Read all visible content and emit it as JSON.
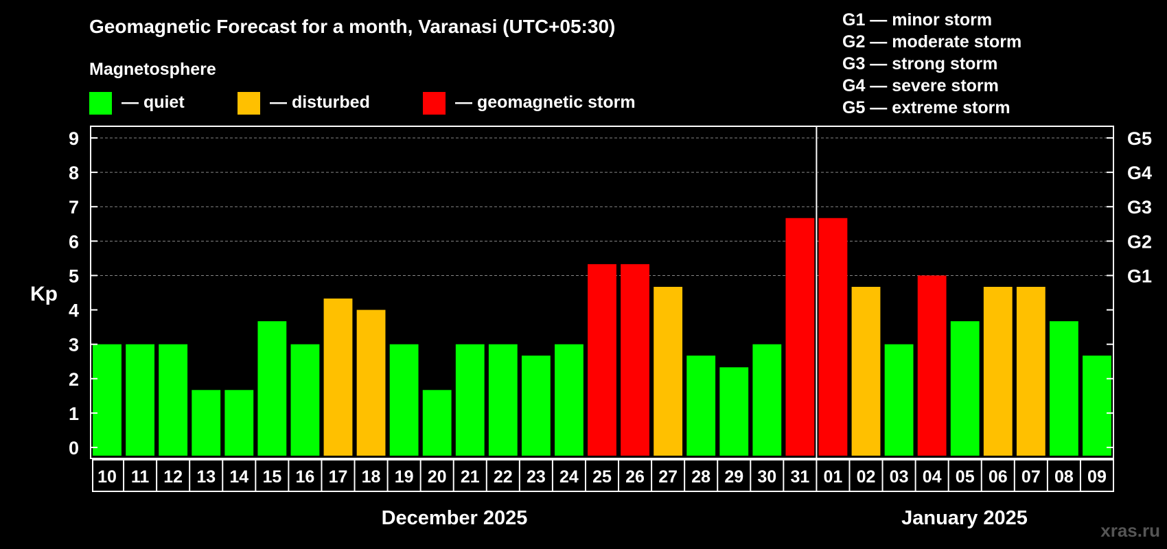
{
  "title": "Geomagnetic Forecast for a month, Varanasi (UTC+05:30)",
  "legend": {
    "heading": "Magnetosphere",
    "items": [
      {
        "label": "— quiet",
        "color": "#00ff00"
      },
      {
        "label": "— disturbed",
        "color": "#ffc000"
      },
      {
        "label": "— geomagnetic storm",
        "color": "#ff0000"
      }
    ]
  },
  "storm_scale": [
    "G1 — minor storm",
    "G2 — moderate storm",
    "G3 — strong storm",
    "G4 — severe storm",
    "G5 — extreme storm"
  ],
  "watermark": "xras.ru",
  "colors": {
    "quiet": "#00ff00",
    "disturbed": "#ffc000",
    "storm": "#ff0000",
    "background": "#000000",
    "grid": "#888888"
  },
  "chart_data": {
    "type": "bar",
    "ylabel": "Kp",
    "ylim": [
      0,
      9
    ],
    "yticks": [
      "0",
      "1",
      "2",
      "3",
      "4",
      "5",
      "6",
      "7",
      "8",
      "9"
    ],
    "right_axis": [
      {
        "label": "G1",
        "value": 5
      },
      {
        "label": "G2",
        "value": 6
      },
      {
        "label": "G3",
        "value": 7
      },
      {
        "label": "G4",
        "value": 8
      },
      {
        "label": "G5",
        "value": 9
      }
    ],
    "grid": "dashed horizontal",
    "categories": [
      "10",
      "11",
      "12",
      "13",
      "14",
      "15",
      "16",
      "17",
      "18",
      "19",
      "20",
      "21",
      "22",
      "23",
      "24",
      "25",
      "26",
      "27",
      "28",
      "29",
      "30",
      "31",
      "01",
      "02",
      "03",
      "04",
      "05",
      "06",
      "07",
      "08",
      "09"
    ],
    "values": [
      3,
      3,
      3,
      1.67,
      1.67,
      3.67,
      3,
      4.33,
      4,
      3,
      1.67,
      3,
      3,
      2.67,
      3,
      5.33,
      5.33,
      4.67,
      2.67,
      2.33,
      3,
      6.67,
      6.67,
      4.67,
      3,
      5,
      3.67,
      4.67,
      4.67,
      3.67,
      2.67
    ],
    "levels": [
      "quiet",
      "quiet",
      "quiet",
      "quiet",
      "quiet",
      "quiet",
      "quiet",
      "disturbed",
      "disturbed",
      "quiet",
      "quiet",
      "quiet",
      "quiet",
      "quiet",
      "quiet",
      "storm",
      "storm",
      "disturbed",
      "quiet",
      "quiet",
      "quiet",
      "storm",
      "storm",
      "disturbed",
      "quiet",
      "storm",
      "quiet",
      "disturbed",
      "disturbed",
      "quiet",
      "quiet"
    ],
    "months": [
      {
        "label": "December 2025",
        "from": 0,
        "to": 21
      },
      {
        "label": "January 2025",
        "from": 22,
        "to": 30
      }
    ]
  }
}
